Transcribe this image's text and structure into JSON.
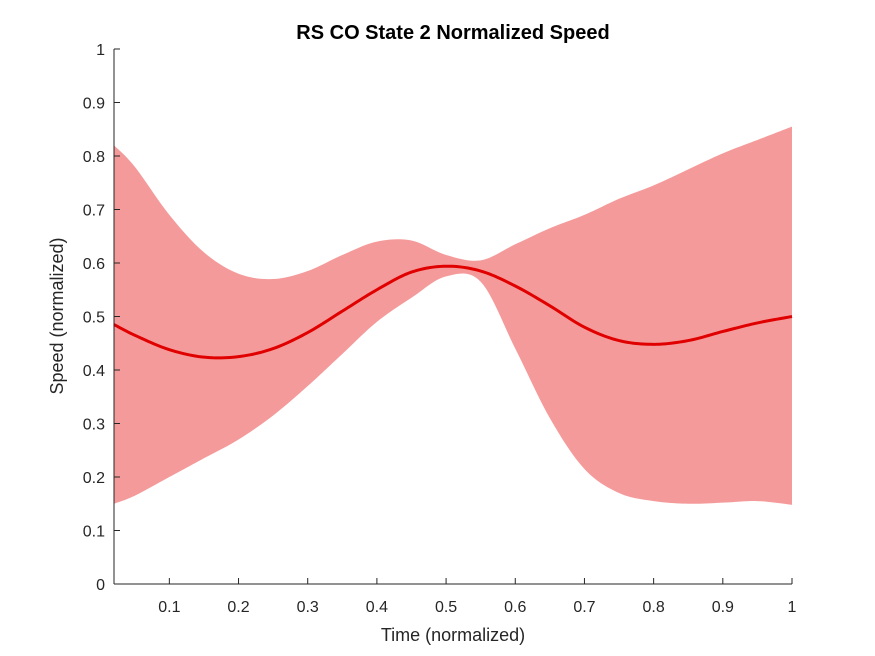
{
  "chart_data": {
    "type": "line",
    "title": "RS  CO State 2 Normalized Speed",
    "xlabel": "Time (normalized)",
    "ylabel": "Speed (normalized)",
    "xlim": [
      0.02,
      1.0
    ],
    "ylim": [
      0,
      1
    ],
    "xticks": [
      "0.1",
      "0.2",
      "0.3",
      "0.4",
      "0.5",
      "0.6",
      "0.7",
      "0.8",
      "0.9",
      "1"
    ],
    "yticks": [
      "0",
      "0.1",
      "0.2",
      "0.3",
      "0.4",
      "0.5",
      "0.6",
      "0.7",
      "0.8",
      "0.9",
      "1"
    ],
    "grid": false,
    "colors": {
      "line": "#e00000",
      "band": "#f59a9a",
      "axis": "#262626"
    },
    "series": [
      {
        "kind": "mean-line",
        "x": [
          0.02,
          0.05,
          0.1,
          0.15,
          0.2,
          0.25,
          0.3,
          0.35,
          0.4,
          0.45,
          0.5,
          0.55,
          0.6,
          0.65,
          0.7,
          0.75,
          0.8,
          0.85,
          0.9,
          0.95,
          1.0
        ],
        "y": [
          0.485,
          0.465,
          0.438,
          0.424,
          0.425,
          0.44,
          0.47,
          0.51,
          0.55,
          0.583,
          0.594,
          0.585,
          0.557,
          0.52,
          0.48,
          0.455,
          0.448,
          0.455,
          0.472,
          0.488,
          0.5
        ]
      },
      {
        "kind": "band-upper",
        "x": [
          0.02,
          0.05,
          0.1,
          0.15,
          0.2,
          0.25,
          0.3,
          0.35,
          0.4,
          0.45,
          0.5,
          0.55,
          0.6,
          0.65,
          0.7,
          0.75,
          0.8,
          0.85,
          0.9,
          0.95,
          1.0
        ],
        "y": [
          0.82,
          0.78,
          0.69,
          0.62,
          0.58,
          0.57,
          0.585,
          0.615,
          0.64,
          0.642,
          0.615,
          0.605,
          0.635,
          0.665,
          0.69,
          0.72,
          0.745,
          0.775,
          0.805,
          0.83,
          0.855
        ]
      },
      {
        "kind": "band-lower",
        "x": [
          0.02,
          0.05,
          0.1,
          0.15,
          0.2,
          0.25,
          0.3,
          0.35,
          0.4,
          0.45,
          0.5,
          0.55,
          0.6,
          0.65,
          0.7,
          0.75,
          0.8,
          0.85,
          0.9,
          0.95,
          1.0
        ],
        "y": [
          0.15,
          0.165,
          0.2,
          0.235,
          0.27,
          0.315,
          0.37,
          0.43,
          0.49,
          0.535,
          0.575,
          0.565,
          0.44,
          0.31,
          0.215,
          0.17,
          0.155,
          0.15,
          0.152,
          0.155,
          0.148
        ]
      }
    ]
  }
}
